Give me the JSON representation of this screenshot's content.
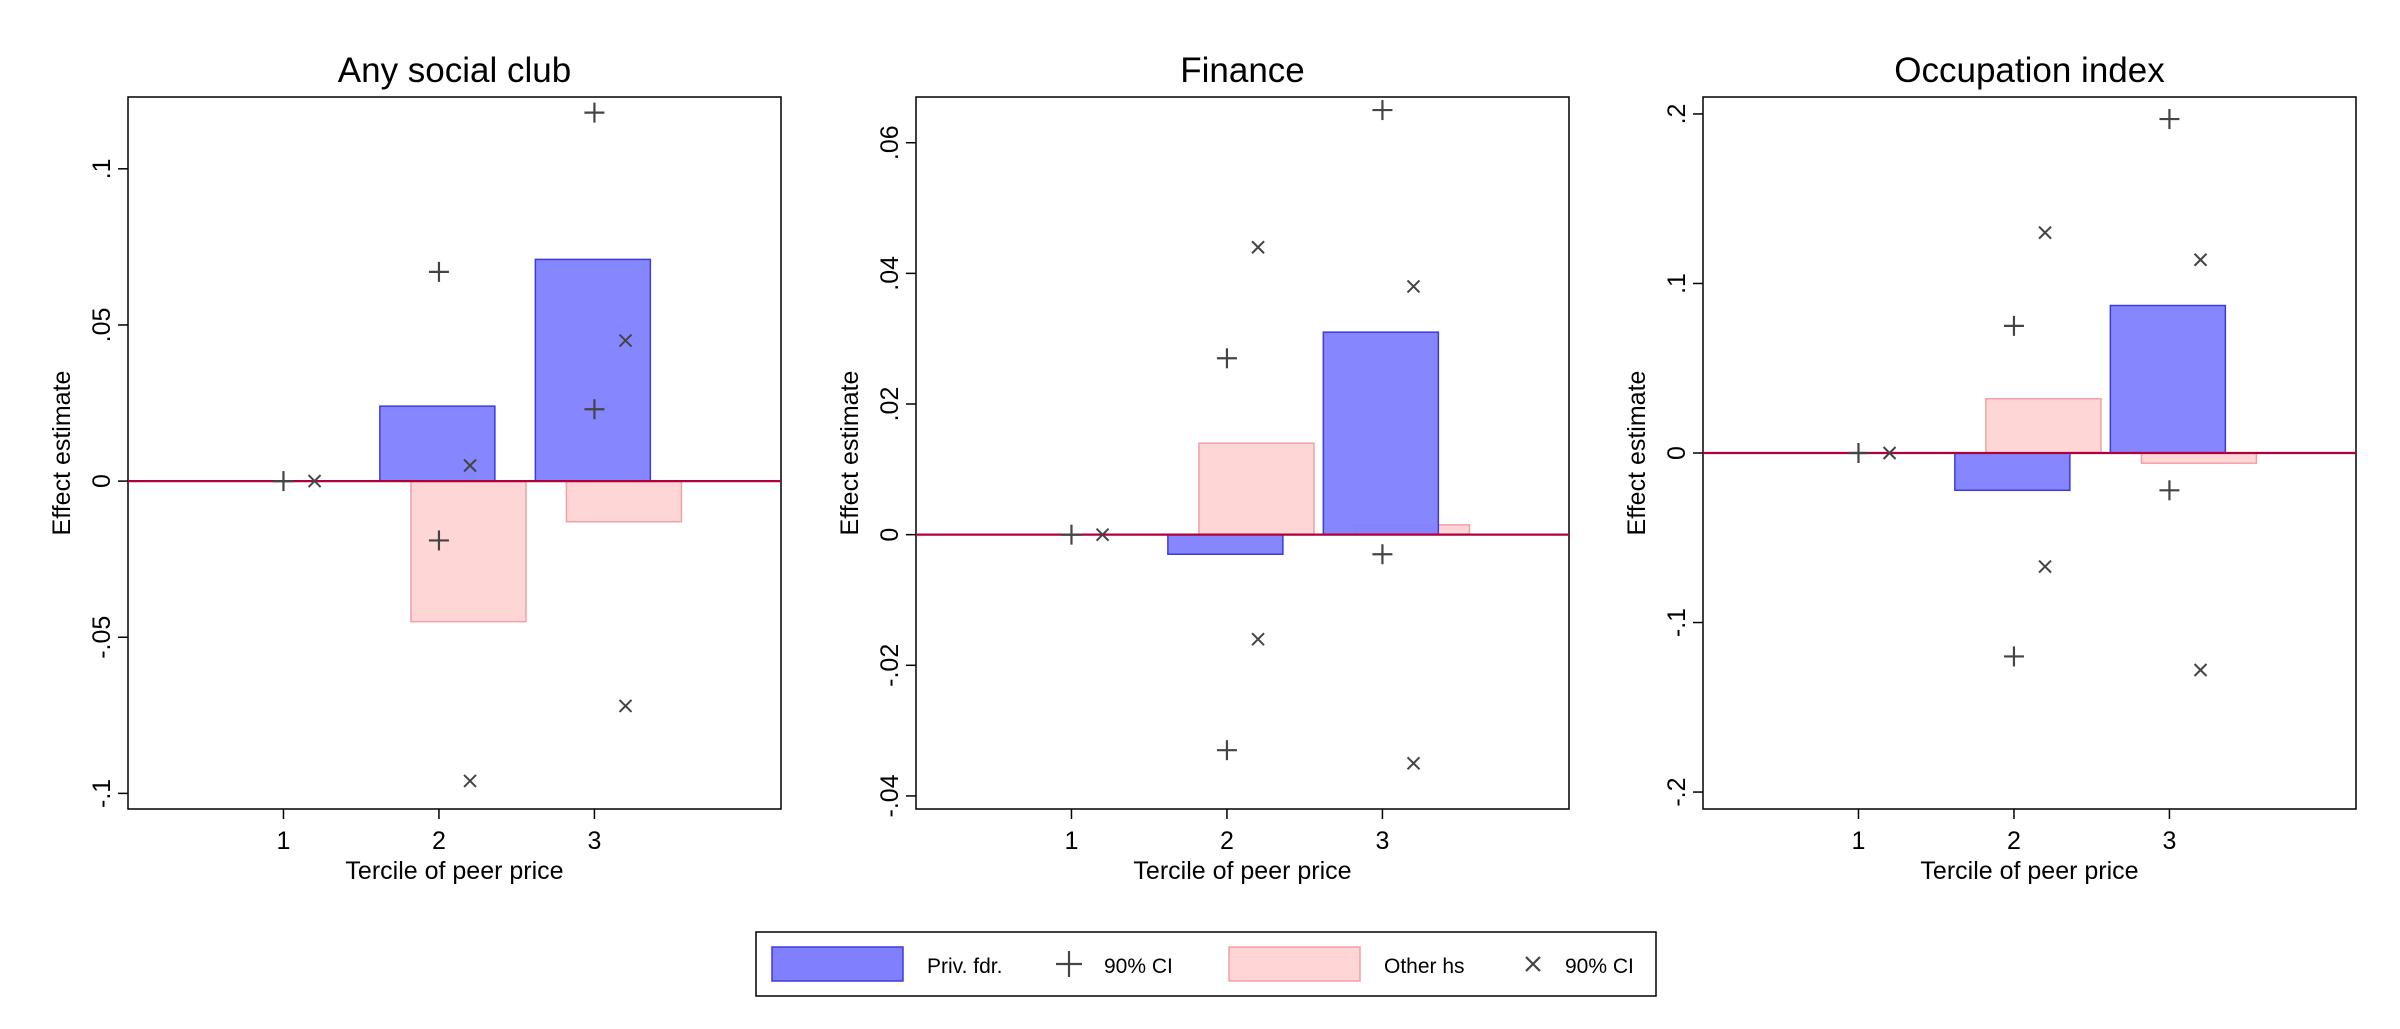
{
  "chart_data": [
    {
      "type": "bar",
      "title": "Any social club",
      "xlabel": "Tercile of peer price",
      "ylabel": "Effect estimate",
      "categories": [
        "1",
        "2",
        "3"
      ],
      "ylim": [
        -0.105,
        0.123
      ],
      "xlim": [
        0,
        4.2
      ],
      "yticks": [
        -0.1,
        -0.05,
        0,
        0.05,
        0.1
      ],
      "ytick_labels": [
        "-.1",
        "-.05",
        "0",
        ".05",
        ".1"
      ],
      "series": [
        {
          "name": "Priv. fdr.",
          "values": [
            0,
            0.024,
            0.071
          ],
          "ci_low": [
            0,
            -0.019,
            0.023
          ],
          "ci_high": [
            0,
            0.067,
            0.118
          ]
        },
        {
          "name": "Other hs",
          "values": [
            0,
            -0.045,
            -0.013
          ],
          "ci_low": [
            0,
            -0.096,
            -0.072
          ],
          "ci_high": [
            0,
            0.005,
            0.045
          ]
        }
      ]
    },
    {
      "type": "bar",
      "title": "Finance",
      "xlabel": "Tercile of peer price",
      "ylabel": "Effect estimate",
      "categories": [
        "1",
        "2",
        "3"
      ],
      "ylim": [
        -0.042,
        0.067
      ],
      "xlim": [
        0,
        4.2
      ],
      "yticks": [
        -0.04,
        -0.02,
        0,
        0.02,
        0.04,
        0.06
      ],
      "ytick_labels": [
        "-.04",
        "-.02",
        "0",
        ".02",
        ".04",
        ".06"
      ],
      "series": [
        {
          "name": "Priv. fdr.",
          "values": [
            0,
            -0.003,
            0.031
          ],
          "ci_low": [
            0,
            -0.033,
            -0.003
          ],
          "ci_high": [
            0,
            0.027,
            0.065
          ]
        },
        {
          "name": "Other hs",
          "values": [
            0,
            0.014,
            0.0015
          ],
          "ci_low": [
            0,
            -0.016,
            -0.035
          ],
          "ci_high": [
            0,
            0.044,
            0.038
          ]
        }
      ]
    },
    {
      "type": "bar",
      "title": "Occupation index",
      "xlabel": "Tercile of peer price",
      "ylabel": "Effect estimate",
      "categories": [
        "1",
        "2",
        "3"
      ],
      "ylim": [
        -0.21,
        0.21
      ],
      "xlim": [
        0,
        4.2
      ],
      "yticks": [
        -0.2,
        -0.1,
        0,
        0.1,
        0.2
      ],
      "ytick_labels": [
        "-.2",
        "-.1",
        "0",
        ".1",
        ".2"
      ],
      "series": [
        {
          "name": "Priv. fdr.",
          "values": [
            0,
            -0.022,
            0.087
          ],
          "ci_low": [
            0,
            -0.12,
            -0.022
          ],
          "ci_high": [
            0,
            0.075,
            0.197
          ]
        },
        {
          "name": "Other hs",
          "values": [
            0,
            0.032,
            -0.006
          ],
          "ci_low": [
            0,
            -0.067,
            -0.128
          ],
          "ci_high": [
            0,
            0.13,
            0.114
          ]
        }
      ]
    }
  ],
  "legend": {
    "items": [
      {
        "label": "Priv. fdr.",
        "symbol": "bar",
        "color": "#8080ff"
      },
      {
        "label": "90% CI",
        "symbol": "plus",
        "color": "#444444"
      },
      {
        "label": "Other hs",
        "symbol": "bar",
        "color": "#ffd5d5"
      },
      {
        "label": "90% CI",
        "symbol": "x",
        "color": "#444444"
      }
    ]
  },
  "colors": {
    "priv_fill": "#8080ff",
    "priv_stroke": "#3c3cdc",
    "other_fill": "#ffc8c8",
    "other_stroke": "#f0a0a6",
    "zero_line": "#b0003c",
    "marker": "#444444"
  }
}
